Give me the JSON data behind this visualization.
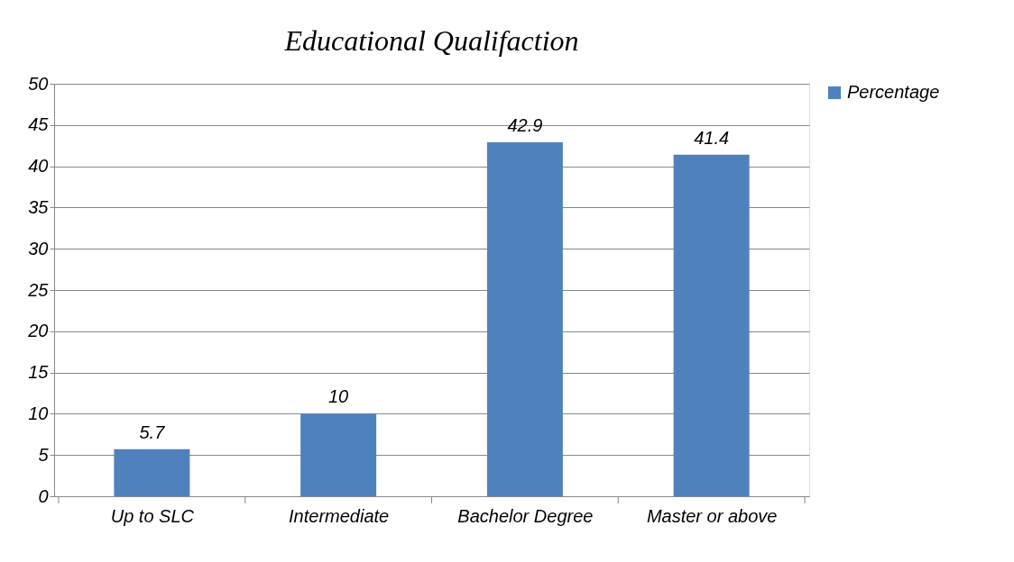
{
  "chart_data": {
    "type": "bar",
    "title": "Educational Qualifaction",
    "categories": [
      "Up to SLC",
      "Intermediate",
      "Bachelor Degree",
      "Master or above"
    ],
    "series": [
      {
        "name": "Percentage",
        "color": "#4f81bd",
        "values": [
          5.7,
          10,
          42.9,
          41.4
        ]
      }
    ],
    "ylim": [
      0,
      50
    ],
    "yticks": [
      0,
      5,
      10,
      15,
      20,
      25,
      30,
      35,
      40,
      45,
      50
    ],
    "grid": "y",
    "legend": "right",
    "data_labels": true
  }
}
